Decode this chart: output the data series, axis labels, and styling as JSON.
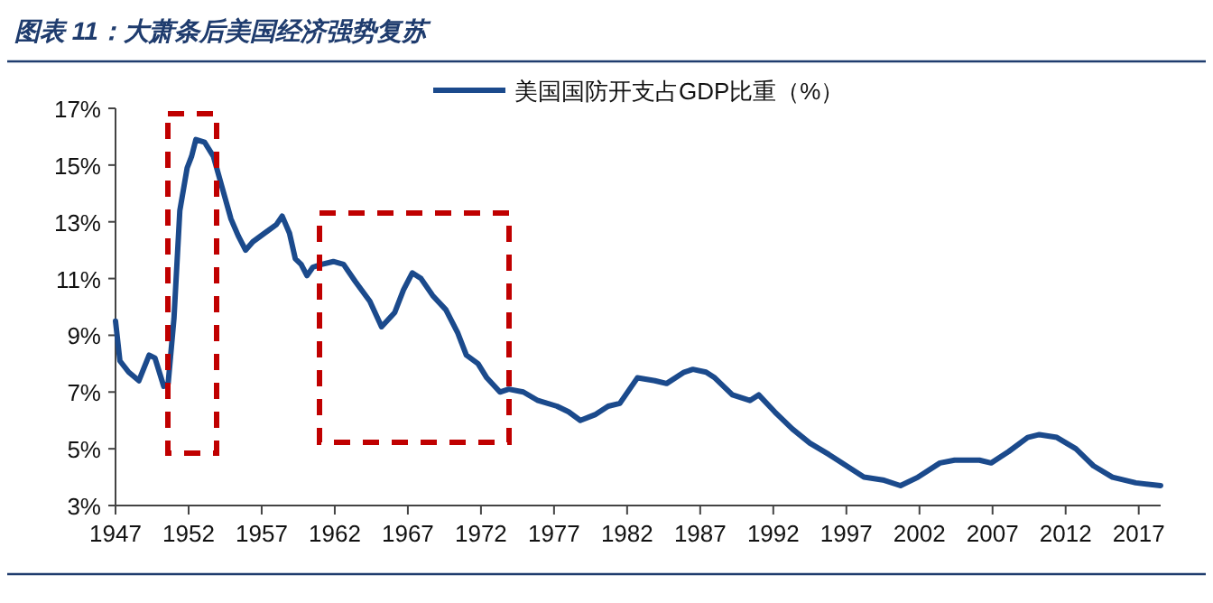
{
  "chart_data": {
    "type": "line",
    "title": "图表 11：大萧条后美国经济强势复苏",
    "series": [
      {
        "name": "美国国防开支占GDP比重（%）",
        "color": "#1b4a8c",
        "x": [
          1947.0,
          1947.3,
          1947.9,
          1948.6,
          1949.3,
          1949.7,
          1950.3,
          1950.6,
          1951.0,
          1951.4,
          1951.9,
          1952.2,
          1952.5,
          1953.1,
          1953.7,
          1954.3,
          1954.9,
          1955.4,
          1955.9,
          1956.4,
          1957.2,
          1958.0,
          1958.4,
          1958.9,
          1959.3,
          1959.7,
          1960.1,
          1960.5,
          1961.1,
          1961.9,
          1962.6,
          1963.4,
          1964.4,
          1965.2,
          1966.1,
          1966.7,
          1967.3,
          1967.9,
          1968.7,
          1969.6,
          1970.4,
          1971.0,
          1971.8,
          1972.4,
          1973.3,
          1973.9,
          1974.9,
          1975.9,
          1977.2,
          1978.0,
          1978.8,
          1979.8,
          1980.7,
          1981.5,
          1982.7,
          1983.9,
          1984.7,
          1985.9,
          1986.5,
          1987.4,
          1988.0,
          1989.2,
          1990.4,
          1991.0,
          1992.1,
          1993.3,
          1994.5,
          1995.8,
          1997.0,
          1998.2,
          1999.5,
          2000.7,
          2001.9,
          2003.4,
          2004.4,
          2006.1,
          2006.9,
          2008.1,
          2009.4,
          2010.2,
          2011.4,
          2012.7,
          2013.9,
          2015.2,
          2016.8,
          2018.5
        ],
        "values": [
          9.5,
          8.1,
          7.7,
          7.4,
          8.3,
          8.2,
          7.2,
          7.3,
          9.6,
          13.4,
          14.9,
          15.3,
          15.9,
          15.8,
          15.3,
          14.2,
          13.1,
          12.5,
          12.0,
          12.3,
          12.6,
          12.9,
          13.2,
          12.6,
          11.7,
          11.5,
          11.1,
          11.4,
          11.5,
          11.6,
          11.5,
          10.9,
          10.2,
          9.3,
          9.8,
          10.6,
          11.2,
          11.0,
          10.4,
          9.9,
          9.1,
          8.3,
          8.0,
          7.5,
          7.0,
          7.1,
          7.0,
          6.7,
          6.5,
          6.3,
          6.0,
          6.2,
          6.5,
          6.6,
          7.5,
          7.4,
          7.3,
          7.7,
          7.8,
          7.7,
          7.5,
          6.9,
          6.7,
          6.9,
          6.3,
          5.7,
          5.2,
          4.8,
          4.4,
          4.0,
          3.9,
          3.7,
          4.0,
          4.5,
          4.6,
          4.6,
          4.5,
          4.9,
          5.4,
          5.5,
          5.4,
          5.0,
          4.4,
          4.0,
          3.8,
          3.7
        ]
      }
    ],
    "xlim": [
      1947,
      2018.5
    ],
    "xticks": [
      1947,
      1952,
      1957,
      1962,
      1967,
      1972,
      1977,
      1982,
      1987,
      1992,
      1997,
      2002,
      2007,
      2012,
      2017
    ],
    "ylim": [
      3,
      17
    ],
    "yticks": [
      {
        "value": 3,
        "label": "3%"
      },
      {
        "value": 5,
        "label": "5%"
      },
      {
        "value": 7,
        "label": "7%"
      },
      {
        "value": 9,
        "label": "9%"
      },
      {
        "value": 11,
        "label": "11%"
      },
      {
        "value": 13,
        "label": "13%"
      },
      {
        "value": 15,
        "label": "15%"
      },
      {
        "value": 17,
        "label": "17%"
      }
    ],
    "legend": "top",
    "marker": "none",
    "line_style": "solid",
    "grid": false
  }
}
